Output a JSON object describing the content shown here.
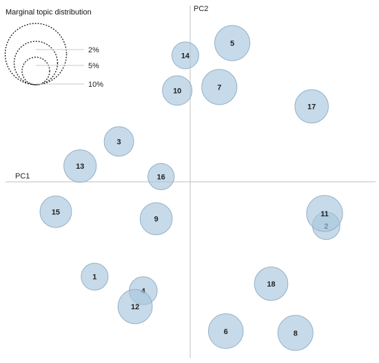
{
  "chart_data": {
    "type": "scatter",
    "xlabel": "PC1",
    "ylabel": "PC2",
    "xlim": [
      -1,
      1
    ],
    "ylim": [
      -1,
      1
    ],
    "legend": {
      "title": "Marginal topic distribution",
      "placement": "top-left",
      "sizes": [
        {
          "label": "2%",
          "percent": 2
        },
        {
          "label": "5%",
          "percent": 5
        },
        {
          "label": "10%",
          "percent": 10
        }
      ]
    },
    "colors": {
      "bubble_fill": "#a9c6dd",
      "bubble_stroke": "#93afc6",
      "axis": "#bfbfbf",
      "legend_circle": "#222222"
    },
    "topics": [
      {
        "label": "1",
        "x": -0.59,
        "y": -0.54,
        "size": 2.4
      },
      {
        "label": "2",
        "x": 0.84,
        "y": -0.25,
        "size": 2.5
      },
      {
        "label": "3",
        "x": -0.44,
        "y": 0.23,
        "size": 2.9
      },
      {
        "label": "4",
        "x": -0.29,
        "y": -0.62,
        "size": 2.6
      },
      {
        "label": "5",
        "x": 0.26,
        "y": 0.79,
        "size": 4.1
      },
      {
        "label": "6",
        "x": 0.22,
        "y": -0.85,
        "size": 4.0
      },
      {
        "label": "7",
        "x": 0.18,
        "y": 0.54,
        "size": 4.1
      },
      {
        "label": "8",
        "x": 0.65,
        "y": -0.86,
        "size": 4.1
      },
      {
        "label": "9",
        "x": -0.21,
        "y": -0.21,
        "size": 3.4
      },
      {
        "label": "10",
        "x": -0.08,
        "y": 0.52,
        "size": 2.9
      },
      {
        "label": "11",
        "x": 0.83,
        "y": -0.18,
        "size": 4.3
      },
      {
        "label": "12",
        "x": -0.34,
        "y": -0.71,
        "size": 3.9
      },
      {
        "label": "13",
        "x": -0.68,
        "y": 0.09,
        "size": 3.5
      },
      {
        "label": "14",
        "x": -0.03,
        "y": 0.72,
        "size": 2.4
      },
      {
        "label": "15",
        "x": -0.83,
        "y": -0.17,
        "size": 3.3
      },
      {
        "label": "16",
        "x": -0.18,
        "y": 0.03,
        "size": 2.3
      },
      {
        "label": "17",
        "x": 0.75,
        "y": 0.43,
        "size": 3.7
      },
      {
        "label": "18",
        "x": 0.5,
        "y": -0.58,
        "size": 3.7
      }
    ]
  }
}
